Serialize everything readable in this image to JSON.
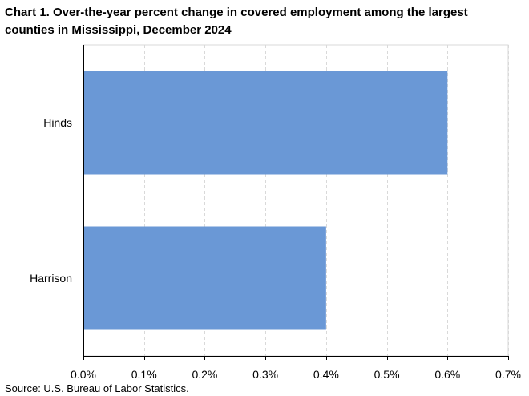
{
  "chart_data": {
    "type": "bar",
    "orientation": "horizontal",
    "title": "Chart 1. Over-the-year percent change in covered employment among the largest counties in Mississippi,  December 2024",
    "categories": [
      "Hinds",
      "Harrison"
    ],
    "values": [
      0.6,
      0.4
    ],
    "xlim": [
      0,
      0.7
    ],
    "xticks": [
      "0.0%",
      "0.1%",
      "0.2%",
      "0.3%",
      "0.4%",
      "0.5%",
      "0.6%",
      "0.7%"
    ],
    "xtick_values": [
      0,
      0.1,
      0.2,
      0.3,
      0.4,
      0.5,
      0.6,
      0.7
    ],
    "bar_color": "#6a98d6",
    "grid": "vertical dashed",
    "legend": "none",
    "source": "Source: U.S. Bureau of Labor Statistics."
  }
}
